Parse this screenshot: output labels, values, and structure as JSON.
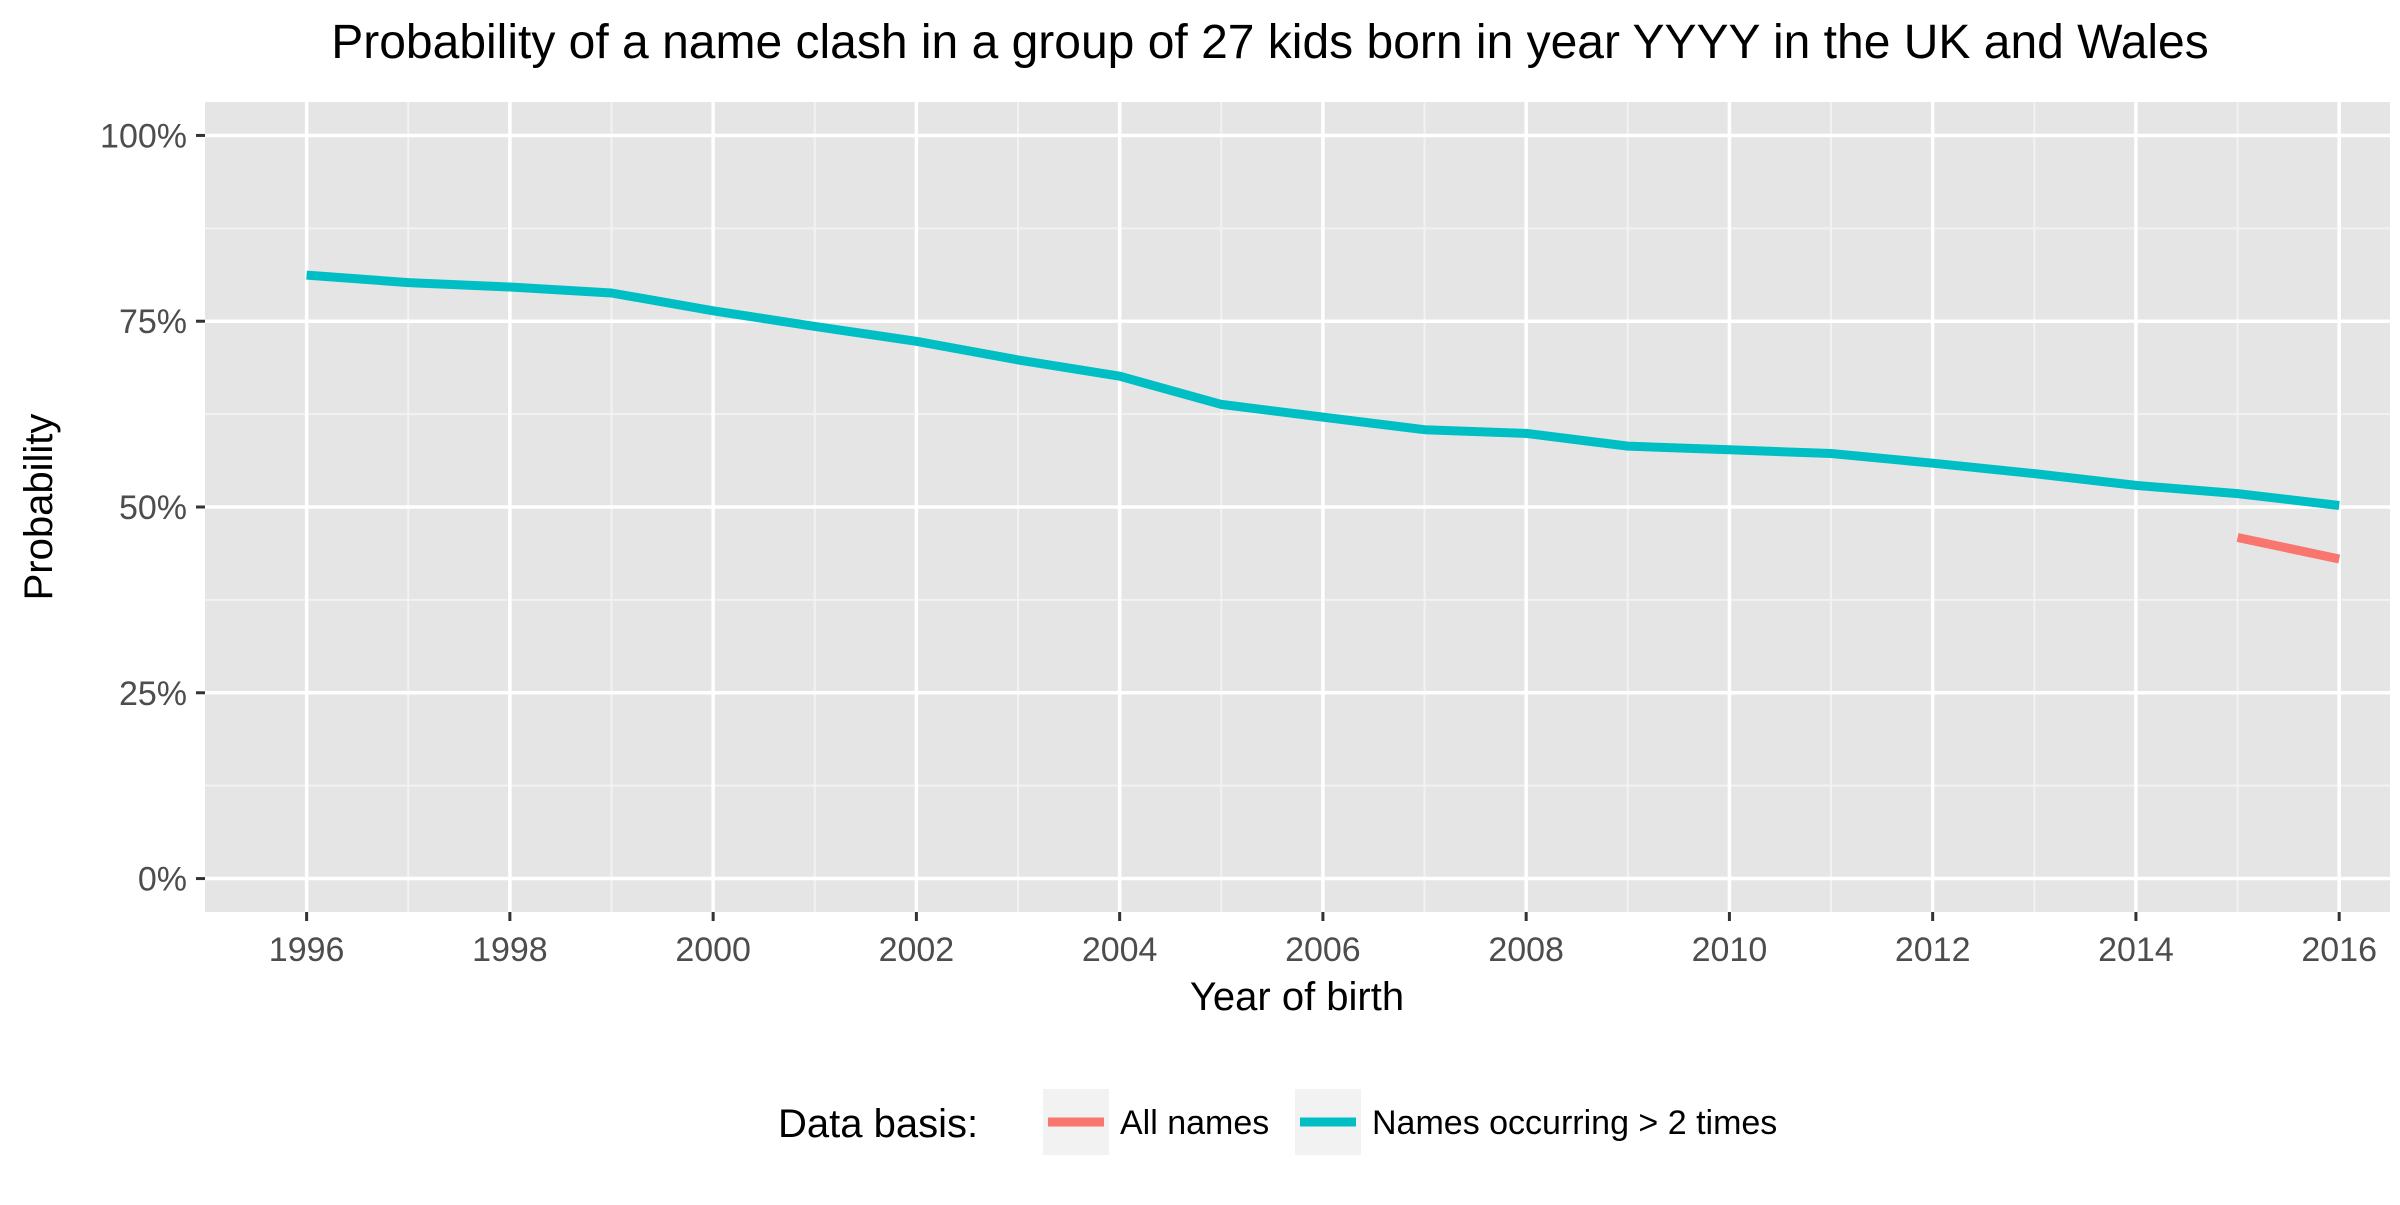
{
  "chart_data": {
    "type": "line",
    "title": "Probability of a name clash in a group of 27 kids born in year YYYY in the UK and Wales",
    "xlabel": "Year of birth",
    "ylabel": "Probability",
    "xlim": [
      1995,
      2016.5
    ],
    "ylim": [
      -0.045,
      1.045
    ],
    "x_ticks": [
      1996,
      1998,
      2000,
      2002,
      2004,
      2006,
      2008,
      2010,
      2012,
      2014,
      2016
    ],
    "x_tick_labels": [
      "1996",
      "1998",
      "2000",
      "2002",
      "2004",
      "2006",
      "2008",
      "2010",
      "2012",
      "2014",
      "2016"
    ],
    "y_ticks": [
      0,
      0.25,
      0.5,
      0.75,
      1.0
    ],
    "y_tick_labels": [
      "0%",
      "25%",
      "50%",
      "75%",
      "100%"
    ],
    "grid": true,
    "legend": {
      "title": "Data basis:",
      "position": "bottom"
    },
    "series": [
      {
        "name": "All names",
        "color": "#F8766D",
        "x": [
          2015,
          2016
        ],
        "y": [
          0.459,
          0.43
        ]
      },
      {
        "name": "Names occurring > 2 times",
        "color": "#00BFC4",
        "x": [
          1996,
          1997,
          1998,
          1999,
          2000,
          2001,
          2002,
          2003,
          2004,
          2005,
          2006,
          2007,
          2008,
          2009,
          2010,
          2011,
          2012,
          2013,
          2014,
          2015,
          2016
        ],
        "y": [
          0.812,
          0.802,
          0.796,
          0.788,
          0.764,
          0.743,
          0.723,
          0.698,
          0.676,
          0.638,
          0.621,
          0.604,
          0.599,
          0.582,
          0.577,
          0.572,
          0.559,
          0.545,
          0.529,
          0.518,
          0.502
        ]
      }
    ]
  }
}
